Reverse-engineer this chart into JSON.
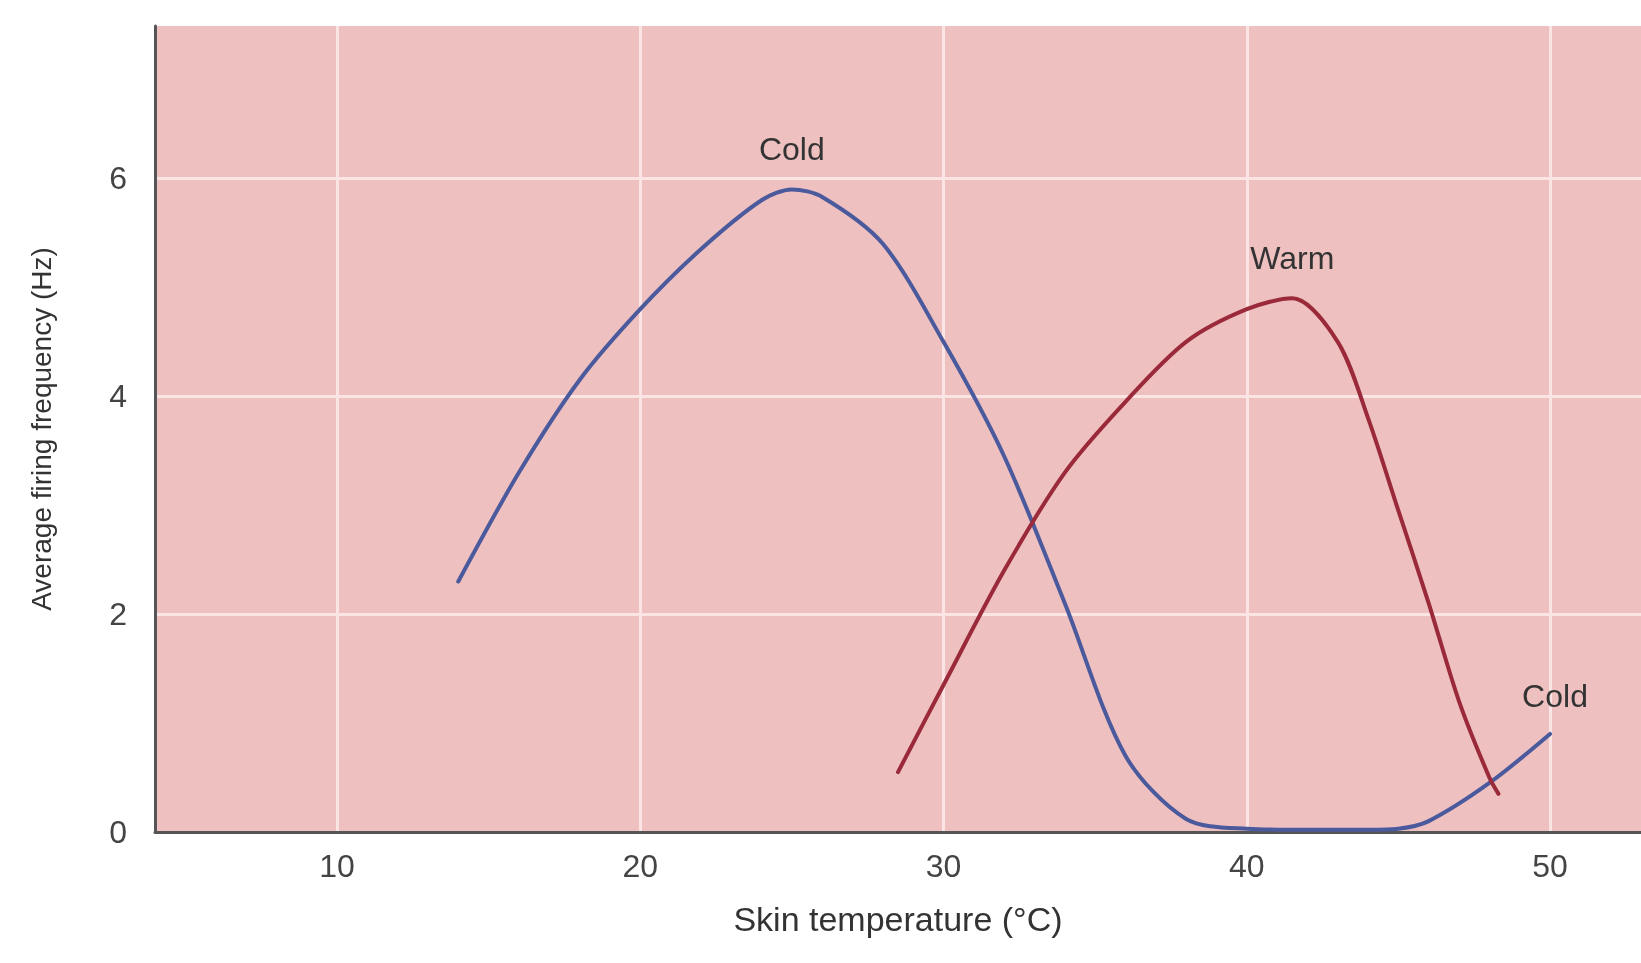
{
  "chart_data": {
    "type": "line",
    "xlabel": "Skin temperature (°C)",
    "ylabel": "Average firing frequency (Hz)",
    "xlim": [
      4,
      53
    ],
    "xticks": [
      10,
      20,
      30,
      40,
      50
    ],
    "ylim": [
      0,
      7.4
    ],
    "yticks": [
      0,
      2,
      4,
      6
    ],
    "grid": true,
    "marker": "none",
    "line_style": "solid",
    "series": [
      {
        "name": "Cold",
        "color": "#4a5a9c",
        "x": [
          14,
          16,
          18,
          20,
          22,
          24,
          25,
          26,
          28,
          30,
          32,
          34,
          36,
          38,
          40,
          42,
          44,
          45,
          46,
          48,
          50
        ],
        "values": [
          2.3,
          3.3,
          4.15,
          4.8,
          5.35,
          5.8,
          5.9,
          5.83,
          5.4,
          4.5,
          3.45,
          2.1,
          0.7,
          0.12,
          0.03,
          0.02,
          0.02,
          0.03,
          0.1,
          0.45,
          0.9
        ]
      },
      {
        "name": "Warm",
        "color": "#9a2a3a",
        "x": [
          28.5,
          30,
          32,
          34,
          36,
          38,
          40,
          41.5,
          43,
          44,
          45,
          46,
          47,
          48,
          48.3
        ],
        "values": [
          0.55,
          1.35,
          2.4,
          3.3,
          3.95,
          4.5,
          4.8,
          4.9,
          4.5,
          3.8,
          2.95,
          2.1,
          1.2,
          0.5,
          0.35
        ]
      }
    ],
    "annotations": [
      "Cold"
    ]
  }
}
